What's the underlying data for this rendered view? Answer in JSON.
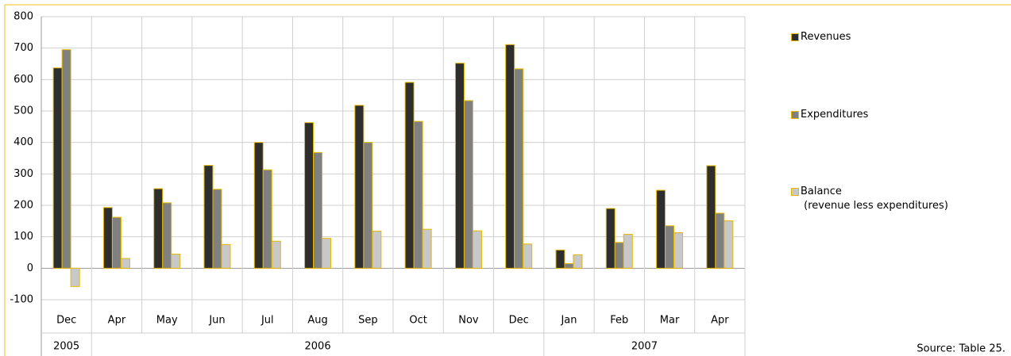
{
  "chart_data": {
    "type": "bar",
    "categories": [
      "Dec",
      "Apr",
      "May",
      "Jun",
      "Jul",
      "Aug",
      "Sep",
      "Oct",
      "Nov",
      "Dec",
      "Jan",
      "Feb",
      "Mar",
      "Apr"
    ],
    "groups": [
      {
        "label": "2005",
        "count": 1
      },
      {
        "label": "2006",
        "count": 9
      },
      {
        "label": "2007",
        "count": 4
      }
    ],
    "series": [
      {
        "name": "Revenues",
        "color": "#2e2e2e",
        "values": [
          637,
          193,
          253,
          327,
          400,
          463,
          518,
          591,
          652,
          711,
          58,
          190,
          248,
          326
        ]
      },
      {
        "name": "Expenditures",
        "color": "#808080",
        "values": [
          695,
          162,
          208,
          251,
          313,
          368,
          400,
          467,
          533,
          634,
          15,
          82,
          135,
          175
        ]
      },
      {
        "name": "Balance\n (revenue less expenditures)",
        "color": "#c8c8c8",
        "values": [
          -58,
          31,
          45,
          75,
          86,
          95,
          118,
          124,
          119,
          77,
          43,
          108,
          113,
          151
        ]
      }
    ],
    "bar_outline": "#e6b800",
    "ylim": [
      -100,
      800
    ],
    "yticks": [
      -100,
      0,
      100,
      200,
      300,
      400,
      500,
      600,
      700,
      800
    ],
    "grid": true,
    "legend_position": "right",
    "source": "Source: Table 25."
  }
}
